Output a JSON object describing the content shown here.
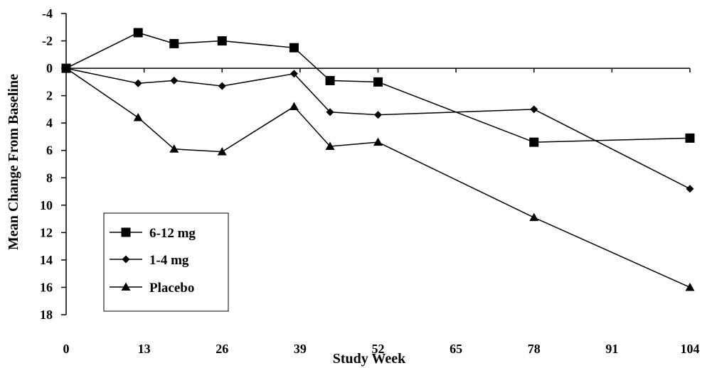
{
  "chart_data": {
    "type": "line",
    "title": "",
    "xlabel": "Study Week",
    "ylabel": "Mean Change From Baseline",
    "x_ticks": [
      0,
      13,
      26,
      39,
      52,
      65,
      78,
      91,
      104
    ],
    "y_ticks": [
      -4,
      -2,
      0,
      2,
      4,
      6,
      8,
      10,
      12,
      14,
      16,
      18
    ],
    "xlim": [
      0,
      104
    ],
    "ylim": [
      -4,
      18
    ],
    "y_inverted": true,
    "grid": false,
    "reference_line_y": 0,
    "legend_position": "bottom-left",
    "series": [
      {
        "name": "6-12 mg",
        "marker": "square",
        "points": [
          {
            "x": 0,
            "y": 0
          },
          {
            "x": 12,
            "y": -2.6
          },
          {
            "x": 18,
            "y": -1.8
          },
          {
            "x": 26,
            "y": -2.0
          },
          {
            "x": 38,
            "y": -1.5
          },
          {
            "x": 44,
            "y": 0.9
          },
          {
            "x": 52,
            "y": 1.0
          },
          {
            "x": 78,
            "y": 5.4
          },
          {
            "x": 104,
            "y": 5.1
          }
        ]
      },
      {
        "name": "1-4 mg",
        "marker": "diamond",
        "points": [
          {
            "x": 0,
            "y": 0
          },
          {
            "x": 12,
            "y": 1.1
          },
          {
            "x": 18,
            "y": 0.9
          },
          {
            "x": 26,
            "y": 1.3
          },
          {
            "x": 38,
            "y": 0.4
          },
          {
            "x": 44,
            "y": 3.2
          },
          {
            "x": 52,
            "y": 3.4
          },
          {
            "x": 78,
            "y": 3.0
          },
          {
            "x": 104,
            "y": 8.8
          }
        ]
      },
      {
        "name": "Placebo",
        "marker": "triangle",
        "points": [
          {
            "x": 0,
            "y": 0
          },
          {
            "x": 12,
            "y": 3.6
          },
          {
            "x": 18,
            "y": 5.9
          },
          {
            "x": 26,
            "y": 6.1
          },
          {
            "x": 38,
            "y": 2.8
          },
          {
            "x": 44,
            "y": 5.7
          },
          {
            "x": 52,
            "y": 5.4
          },
          {
            "x": 78,
            "y": 10.9
          },
          {
            "x": 104,
            "y": 16.0
          }
        ]
      }
    ]
  }
}
